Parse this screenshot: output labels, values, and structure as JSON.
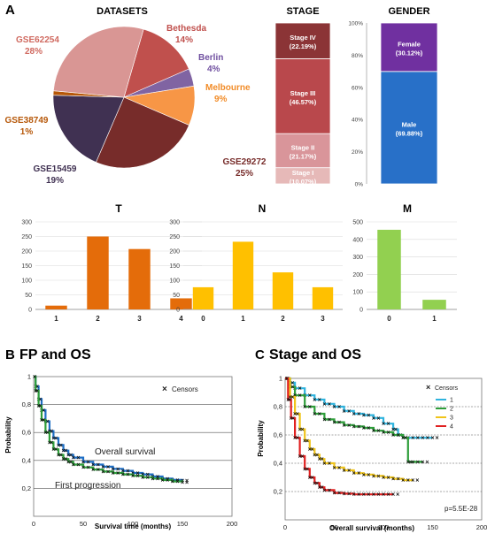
{
  "panels": {
    "A": "A",
    "B": "B",
    "C": "C"
  },
  "chart_data": [
    {
      "id": "datasets",
      "type": "pie",
      "title": "DATASETS",
      "slices": [
        {
          "label": "Bethesda",
          "percent_text": "14%",
          "value": 14,
          "color": "#c0504d",
          "label_color": "#c0504d"
        },
        {
          "label": "Berlin",
          "percent_text": "4%",
          "value": 4,
          "color": "#8064a2",
          "label_color": "#7050a0"
        },
        {
          "label": "Melbourne",
          "percent_text": "9%",
          "value": 9,
          "color": "#f79646",
          "label_color": "#f28c28"
        },
        {
          "label": "GSE29272",
          "percent_text": "25%",
          "value": 25,
          "color": "#772c2a",
          "label_color": "#772c2a"
        },
        {
          "label": "GSE15459",
          "percent_text": "19%",
          "value": 19,
          "color": "#403152",
          "label_color": "#403152"
        },
        {
          "label": "GSE38749",
          "percent_text": "1%",
          "value": 1,
          "color": "#b65708",
          "label_color": "#b65708"
        },
        {
          "label": "GSE62254",
          "percent_text": "28%",
          "value": 28,
          "color": "#d99694",
          "label_color": "#d06a60"
        }
      ]
    },
    {
      "id": "stage",
      "type": "bar",
      "stacked": true,
      "title": "STAGE",
      "segments": [
        {
          "name": "Stage I",
          "pct": "(10.07%)",
          "value": 10.07,
          "color": "#e6b9b8"
        },
        {
          "name": "Stage II",
          "pct": "(21.17%)",
          "value": 21.17,
          "color": "#d9959a"
        },
        {
          "name": "Stage III",
          "pct": "(46.57%)",
          "value": 46.57,
          "color": "#b9484c"
        },
        {
          "name": "Stage IV",
          "pct": "(22.19%)",
          "value": 22.19,
          "color": "#8b3436"
        }
      ]
    },
    {
      "id": "gender",
      "type": "bar",
      "stacked": true,
      "title": "GENDER",
      "yticks": [
        "0%",
        "20%",
        "40%",
        "60%",
        "80%",
        "100%"
      ],
      "segments": [
        {
          "name": "Male",
          "pct": "(69.88%)",
          "value": 69.88,
          "color": "#2870c8"
        },
        {
          "name": "Female",
          "pct": "(30.12%)",
          "value": 30.12,
          "color": "#7030a0"
        }
      ]
    },
    {
      "id": "T",
      "type": "bar",
      "title": "T",
      "categories": [
        "1",
        "2",
        "3",
        "4"
      ],
      "values": [
        13,
        250,
        207,
        38
      ],
      "color": "#e46c0a",
      "ylim": [
        0,
        300
      ],
      "yticks": [
        0,
        50,
        100,
        150,
        200,
        250,
        300
      ]
    },
    {
      "id": "N",
      "type": "bar",
      "title": "N",
      "categories": [
        "0",
        "1",
        "2",
        "3"
      ],
      "values": [
        76,
        232,
        127,
        76
      ],
      "color": "#ffc000",
      "ylim": [
        0,
        300
      ],
      "yticks": [
        0,
        50,
        100,
        150,
        200,
        250,
        300
      ]
    },
    {
      "id": "M",
      "type": "bar",
      "title": "M",
      "categories": [
        "0",
        "1"
      ],
      "values": [
        455,
        55
      ],
      "color": "#92d050",
      "ylim": [
        0,
        500
      ],
      "yticks": [
        0,
        100,
        200,
        300,
        400,
        500
      ]
    },
    {
      "id": "fp_os",
      "type": "line",
      "title": "FP and OS",
      "xlabel": "Survival time (months)",
      "ylabel": "Probability",
      "xlim": [
        0,
        200
      ],
      "ylim": [
        0,
        1
      ],
      "xticks": [
        0,
        50,
        100,
        150,
        200
      ],
      "yticks": [
        "0,2",
        "0,4",
        "0,6",
        "0,8",
        "1"
      ],
      "legend": "Censors",
      "annotations": [
        "Overall survival",
        "First progression"
      ],
      "series": [
        {
          "color": "#1f6fc5",
          "x": [
            0,
            2,
            5,
            8,
            12,
            16,
            20,
            25,
            30,
            35,
            40,
            50,
            60,
            70,
            80,
            90,
            100,
            110,
            120,
            130,
            140,
            150
          ],
          "y": [
            1.0,
            0.93,
            0.84,
            0.76,
            0.68,
            0.61,
            0.56,
            0.51,
            0.47,
            0.44,
            0.42,
            0.39,
            0.37,
            0.355,
            0.34,
            0.325,
            0.31,
            0.3,
            0.285,
            0.27,
            0.26,
            0.255
          ]
        },
        {
          "color": "#2e9e3a",
          "x": [
            0,
            2,
            5,
            8,
            12,
            16,
            20,
            25,
            30,
            35,
            40,
            50,
            60,
            70,
            80,
            90,
            100,
            110,
            120,
            130,
            140,
            150
          ],
          "y": [
            1.0,
            0.9,
            0.79,
            0.69,
            0.6,
            0.53,
            0.48,
            0.44,
            0.41,
            0.39,
            0.37,
            0.35,
            0.335,
            0.32,
            0.31,
            0.3,
            0.29,
            0.28,
            0.27,
            0.26,
            0.25,
            0.245
          ]
        }
      ]
    },
    {
      "id": "stage_os",
      "type": "line",
      "title": "Stage and OS",
      "xlabel": "Overall survival (months)",
      "ylabel": "Probability",
      "xlim": [
        0,
        200
      ],
      "ylim": [
        0,
        1
      ],
      "xticks": [
        0,
        50,
        100,
        150,
        200
      ],
      "yticks": [
        "0,2",
        "0,4",
        "0,6",
        "0,8",
        "1"
      ],
      "legend_title": "Censors",
      "annotation": "p=5.5E-28",
      "series": [
        {
          "name": "1",
          "color": "#2fb3de",
          "x": [
            0,
            5,
            10,
            20,
            30,
            40,
            50,
            60,
            70,
            80,
            90,
            100,
            110,
            115,
            120,
            130,
            140,
            150
          ],
          "y": [
            1.0,
            0.97,
            0.93,
            0.88,
            0.85,
            0.82,
            0.8,
            0.77,
            0.75,
            0.74,
            0.72,
            0.68,
            0.64,
            0.6,
            0.58,
            0.58,
            0.58,
            0.58
          ]
        },
        {
          "name": "2",
          "color": "#2e9e3a",
          "x": [
            0,
            5,
            10,
            20,
            30,
            40,
            50,
            60,
            70,
            80,
            90,
            100,
            110,
            120,
            125,
            130,
            140
          ],
          "y": [
            1.0,
            0.94,
            0.88,
            0.8,
            0.75,
            0.71,
            0.69,
            0.67,
            0.66,
            0.65,
            0.63,
            0.62,
            0.6,
            0.58,
            0.41,
            0.41,
            0.41
          ]
        },
        {
          "name": "3",
          "color": "#f0c419",
          "x": [
            0,
            5,
            10,
            15,
            20,
            25,
            30,
            35,
            40,
            50,
            60,
            70,
            80,
            90,
            100,
            110,
            120,
            130
          ],
          "y": [
            1.0,
            0.87,
            0.75,
            0.64,
            0.56,
            0.5,
            0.46,
            0.43,
            0.4,
            0.37,
            0.35,
            0.33,
            0.32,
            0.31,
            0.3,
            0.29,
            0.28,
            0.28
          ]
        },
        {
          "name": "4",
          "color": "#e02020",
          "x": [
            0,
            3,
            6,
            10,
            15,
            20,
            25,
            30,
            35,
            40,
            50,
            60,
            70,
            80,
            90,
            100,
            110
          ],
          "y": [
            1.0,
            0.85,
            0.72,
            0.58,
            0.45,
            0.36,
            0.3,
            0.26,
            0.23,
            0.21,
            0.19,
            0.185,
            0.18,
            0.18,
            0.18,
            0.18,
            0.18
          ]
        }
      ]
    }
  ]
}
